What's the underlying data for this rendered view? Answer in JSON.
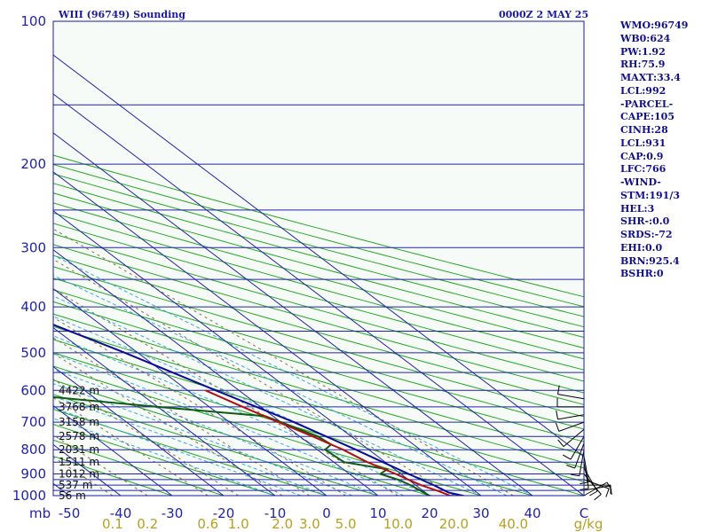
{
  "chart_data": {
    "type": "skew-t log-p sounding",
    "title": "WIII (96749) Sounding",
    "time": "0000Z  2 MAY 25",
    "pressure_axis_label": "mb",
    "pressure_levels": [
      100,
      200,
      300,
      400,
      500,
      600,
      700,
      800,
      900,
      1000
    ],
    "pressure_lines": [
      100,
      150,
      200,
      250,
      300,
      350,
      400,
      450,
      500,
      550,
      600,
      650,
      700,
      750,
      800,
      850,
      900,
      925,
      950,
      975,
      1000
    ],
    "temp_ticks": [
      {
        "t": -50,
        "label": "-50"
      },
      {
        "t": -40,
        "label": "-40"
      },
      {
        "t": -30,
        "label": "-30"
      },
      {
        "t": -20,
        "label": "-20"
      },
      {
        "t": -10,
        "label": "-10"
      },
      {
        "t": 0,
        "label": "0"
      },
      {
        "t": 10,
        "label": "10"
      },
      {
        "t": 20,
        "label": "20"
      },
      {
        "t": 30,
        "label": "30"
      },
      {
        "t": 40,
        "label": "40"
      },
      {
        "t": 50,
        "label": "C"
      }
    ],
    "mixing_ratio_ticks": [
      "0.1",
      "0.2",
      "0.6",
      "1.0",
      "2.0",
      "3.0",
      "5.0",
      "10.0",
      "20.0",
      "40.0",
      "g/kg"
    ],
    "height_labels": [
      {
        "p": 600,
        "label": "4422 m"
      },
      {
        "p": 650,
        "label": "3768 m"
      },
      {
        "p": 700,
        "label": "3158 m"
      },
      {
        "p": 750,
        "label": "2578 m"
      },
      {
        "p": 800,
        "label": "2031 m"
      },
      {
        "p": 850,
        "label": "1511 m"
      },
      {
        "p": 900,
        "label": "1012 m"
      },
      {
        "p": 950,
        "label": "537 m"
      },
      {
        "p": 1000,
        "label": "56 m"
      }
    ],
    "parcel_trace": [
      {
        "p": 1008,
        "t": 27.5
      },
      {
        "p": 985,
        "t": 24.5
      },
      {
        "p": 950,
        "t": 23.5
      },
      {
        "p": 900,
        "t": 21.5
      },
      {
        "p": 850,
        "t": 19.5
      },
      {
        "p": 800,
        "t": 17.5
      },
      {
        "p": 700,
        "t": 12.5
      },
      {
        "p": 600,
        "t": 5.5
      },
      {
        "p": 500,
        "t": -2.5
      },
      {
        "p": 400,
        "t": -13.5
      },
      {
        "p": 300,
        "t": -30.0
      },
      {
        "p": 250,
        "t": -40.5
      },
      {
        "p": 200,
        "t": -55.5
      },
      {
        "p": 150,
        "t": -77.0
      },
      {
        "p": 110,
        "t": -101.0
      }
    ],
    "temperature": [
      {
        "p": 1008,
        "t": 25.0
      },
      {
        "p": 1000,
        "t": 24.0
      },
      {
        "p": 980,
        "t": 23.0
      },
      {
        "p": 950,
        "t": 21.0
      },
      {
        "p": 925,
        "t": 20.0
      },
      {
        "p": 900,
        "t": 19.0
      },
      {
        "p": 850,
        "t": 16.5
      },
      {
        "p": 800,
        "t": 15.0
      },
      {
        "p": 750,
        "t": 12.5
      },
      {
        "p": 700,
        "t": 9.5
      },
      {
        "p": 650,
        "t": 6.5
      },
      {
        "p": 600,
        "t": 3.5
      }
    ],
    "dewpoint": [
      {
        "p": 1008,
        "t": 21.0
      },
      {
        "p": 1000,
        "t": 20.0
      },
      {
        "p": 950,
        "t": 19.0
      },
      {
        "p": 925,
        "t": 18.0
      },
      {
        "p": 900,
        "t": 16.0
      },
      {
        "p": 880,
        "t": 18.5
      },
      {
        "p": 850,
        "t": 12.0
      },
      {
        "p": 800,
        "t": 11.5
      },
      {
        "p": 780,
        "t": 14.0
      },
      {
        "p": 750,
        "t": 13.5
      },
      {
        "p": 700,
        "t": 10.0
      },
      {
        "p": 680,
        "t": 8.5
      },
      {
        "p": 650,
        "t": -10.0
      },
      {
        "p": 600,
        "t": -40.0
      }
    ],
    "wind_barbs": [
      {
        "p": 1000,
        "dir": 60,
        "kt": 10
      },
      {
        "p": 975,
        "dir": 80,
        "kt": 10
      },
      {
        "p": 950,
        "dir": 90,
        "kt": 10
      },
      {
        "p": 925,
        "dir": 110,
        "kt": 10
      },
      {
        "p": 900,
        "dir": 140,
        "kt": 10
      },
      {
        "p": 875,
        "dir": 150,
        "kt": 10
      },
      {
        "p": 850,
        "dir": 170,
        "kt": 10
      },
      {
        "p": 825,
        "dir": 170,
        "kt": 10
      },
      {
        "p": 800,
        "dir": 190,
        "kt": 10
      },
      {
        "p": 775,
        "dir": 200,
        "kt": 10
      },
      {
        "p": 750,
        "dir": 210,
        "kt": 10
      },
      {
        "p": 725,
        "dir": 230,
        "kt": 10
      },
      {
        "p": 700,
        "dir": 250,
        "kt": 10
      },
      {
        "p": 675,
        "dir": 260,
        "kt": 10
      },
      {
        "p": 650,
        "dir": 270,
        "kt": 10
      },
      {
        "p": 625,
        "dir": 280,
        "kt": 10
      }
    ],
    "colors": {
      "axis": "#1a1aa0",
      "isobar": "#2323a8",
      "isotherm": "#2323a8",
      "dry_adiabat": "#22a822",
      "moist_adiabat": "#3aa8e0",
      "mixing_ratio": "#8a7040",
      "temperature": "#b01010",
      "dewpoint": "#0f5a14",
      "parcel": "#0a0a96",
      "mixing_label": "#b8a020",
      "wind": "#000000"
    }
  },
  "parameters": [
    "WMO:96749",
    "WB0:624",
    "PW:1.92",
    "RH:75.9",
    "MAXT:33.4",
    "LCL:992",
    "-PARCEL-",
    "CAPE:105",
    "CINH:28",
    "LCL:931",
    "CAP:0.9",
    "LFC:766",
    "-WIND-",
    "STM:191/3",
    "HEL:3",
    "SHR-:0.0",
    "SRDS:-72",
    "EHI:0.0",
    "BRN:925.4",
    "BSHR:0"
  ]
}
